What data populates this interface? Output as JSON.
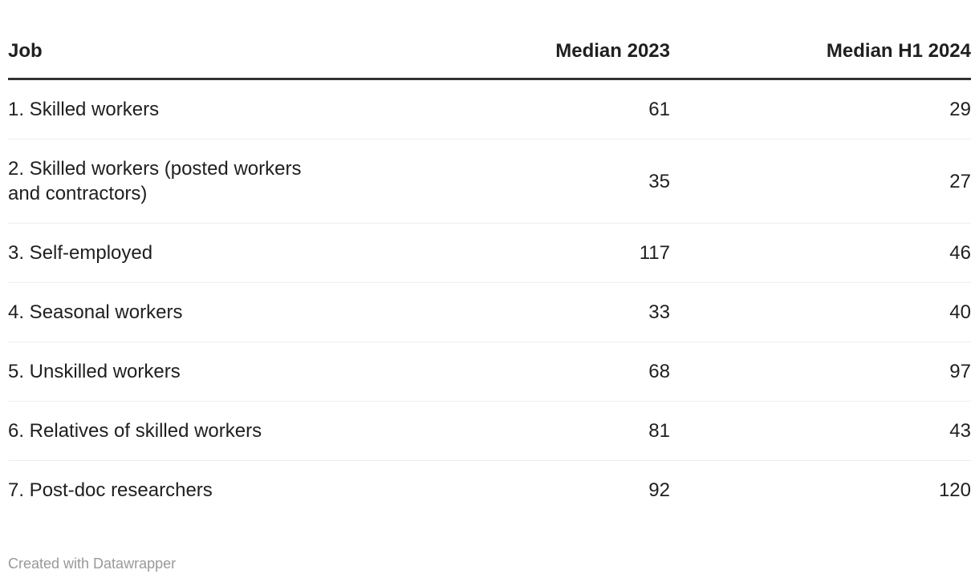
{
  "table": {
    "columns": [
      "Job",
      "Median 2023",
      "Median H1 2024"
    ],
    "rows": [
      {
        "job": "1. Skilled workers",
        "median_2023": "61",
        "median_h1_2024": "29"
      },
      {
        "job": "2. Skilled workers (posted workers and contractors)",
        "median_2023": "35",
        "median_h1_2024": "27"
      },
      {
        "job": "3. Self-employed",
        "median_2023": "117",
        "median_h1_2024": "46"
      },
      {
        "job": "4. Seasonal workers",
        "median_2023": "33",
        "median_h1_2024": "40"
      },
      {
        "job": "5. Unskilled workers",
        "median_2023": "68",
        "median_h1_2024": "97"
      },
      {
        "job": "6. Relatives of skilled workers",
        "median_2023": "81",
        "median_h1_2024": "43"
      },
      {
        "job": "7. Post-doc researchers",
        "median_2023": "92",
        "median_h1_2024": "120"
      }
    ]
  },
  "footer": {
    "attribution": "Created with Datawrapper"
  },
  "colors": {
    "text": "#1f1f1f",
    "header_border": "#333333",
    "row_divider": "#eeeeee",
    "footer_text": "#999999"
  },
  "chart_data": {
    "type": "table",
    "title": "",
    "categories": [
      "1. Skilled workers",
      "2. Skilled workers (posted workers and contractors)",
      "3. Self-employed",
      "4. Seasonal workers",
      "5. Unskilled workers",
      "6. Relatives of skilled workers",
      "7. Post-doc researchers"
    ],
    "series": [
      {
        "name": "Median 2023",
        "values": [
          61,
          35,
          117,
          33,
          68,
          81,
          92
        ]
      },
      {
        "name": "Median H1 2024",
        "values": [
          29,
          27,
          46,
          40,
          97,
          43,
          120
        ]
      }
    ],
    "layout_hints": {
      "numeric_columns_align": "right",
      "header_rule": "thick-dark",
      "row_dividers": true,
      "attribution": "Created with Datawrapper"
    }
  }
}
